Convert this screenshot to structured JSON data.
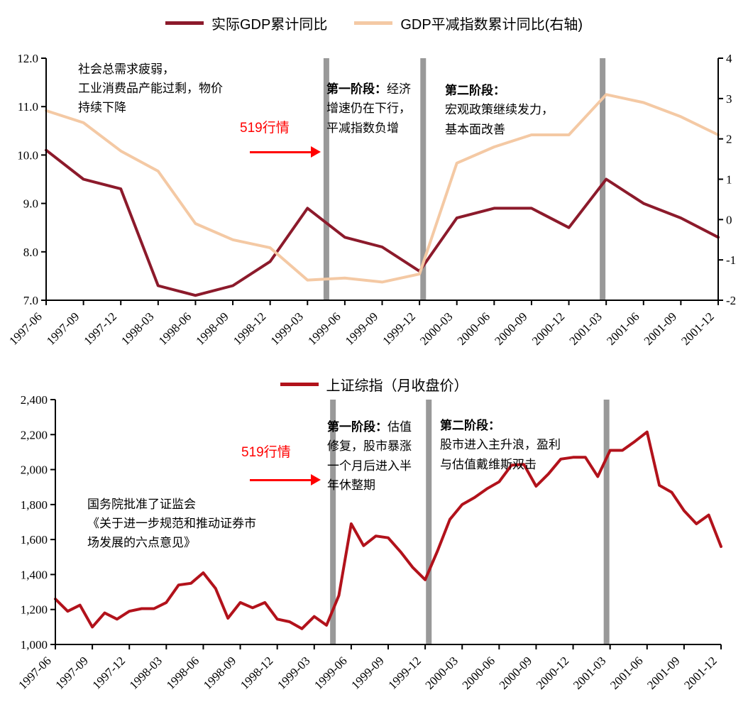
{
  "colors": {
    "background": "#ffffff",
    "text": "#000000",
    "axis": "#000000",
    "event_bar": "#999999",
    "highlight_red": "#ff0000"
  },
  "chart_data": [
    {
      "type": "line",
      "title": "",
      "legend_position": "top",
      "grid": false,
      "categories": [
        "1997-06",
        "1997-09",
        "1997-12",
        "1998-03",
        "1998-06",
        "1998-09",
        "1998-12",
        "1999-03",
        "1999-06",
        "1999-09",
        "1999-12",
        "2000-03",
        "2000-06",
        "2000-09",
        "2000-12",
        "2001-03",
        "2001-06",
        "2001-09",
        "2001-12"
      ],
      "series": [
        {
          "name": "实际GDP累计同比",
          "slug": "real-gdp-line",
          "axis": "left",
          "color": "#8C1A2B",
          "values": [
            10.1,
            9.5,
            9.3,
            7.3,
            7.1,
            7.3,
            7.8,
            8.9,
            8.3,
            8.1,
            7.6,
            8.7,
            8.9,
            8.9,
            8.5,
            9.5,
            9.0,
            8.7,
            8.3
          ]
        },
        {
          "name": "GDP平减指数累计同比(右轴)",
          "slug": "gdp-deflator-line",
          "axis": "right",
          "color": "#F4C9A4",
          "values": [
            2.7,
            2.4,
            1.7,
            1.2,
            -0.1,
            -0.5,
            -0.7,
            -1.5,
            -1.45,
            -1.55,
            -1.35,
            1.4,
            1.8,
            2.1,
            2.1,
            3.1,
            2.9,
            2.55,
            2.1
          ]
        }
      ],
      "y_left": {
        "min": 7.0,
        "max": 12.0,
        "ticks": [
          "12.0",
          "11.0",
          "10.0",
          "9.0",
          "8.0",
          "7.0"
        ]
      },
      "y_right": {
        "min": -2,
        "max": 4,
        "ticks": [
          "4",
          "3",
          "2",
          "1",
          "0",
          "-1",
          "-2"
        ]
      },
      "event_bars": [
        {
          "frac": 0.417
        },
        {
          "frac": 0.561
        },
        {
          "frac": 0.828
        }
      ],
      "annotations": {
        "note": "社会总需求疲弱，\n工业消费品产能过剩，物价\n持续下降",
        "event": "519行情",
        "phase1_label": "第一阶段：",
        "phase1_text": "经济\n增速仍在下行，\n平减指数负增",
        "phase2_label": "第二阶段：",
        "phase2_text": "宏观政策继续发力，\n基本面改善"
      }
    },
    {
      "type": "line",
      "title": "",
      "legend_position": "top",
      "grid": false,
      "x_frequency": "monthly",
      "categories": [
        "1997-06",
        "1997-09",
        "1997-12",
        "1998-03",
        "1998-06",
        "1998-09",
        "1998-12",
        "1999-03",
        "1999-06",
        "1999-09",
        "1999-12",
        "2000-03",
        "2000-06",
        "2000-09",
        "2000-12",
        "2001-03",
        "2001-06",
        "2001-09",
        "2001-12"
      ],
      "series": [
        {
          "name": "上证综指（月收盘价）",
          "slug": "sse-composite-line",
          "axis": "left",
          "color": "#B2121B",
          "values": [
            1260,
            1190,
            1225,
            1100,
            1180,
            1145,
            1190,
            1205,
            1205,
            1240,
            1340,
            1350,
            1410,
            1320,
            1150,
            1240,
            1210,
            1240,
            1145,
            1130,
            1090,
            1160,
            1110,
            1280,
            1690,
            1565,
            1620,
            1610,
            1530,
            1440,
            1370,
            1535,
            1715,
            1800,
            1840,
            1890,
            1930,
            2025,
            2030,
            1905,
            1975,
            2060,
            2070,
            2070,
            1960,
            2110,
            2110,
            2160,
            2215,
            1910,
            1870,
            1765,
            1690,
            1740,
            1560
          ]
        }
      ],
      "y_left": {
        "min": 1000,
        "max": 2400,
        "ticks": [
          "2,400",
          "2,200",
          "2,000",
          "1,800",
          "1,600",
          "1,400",
          "1,200",
          "1,000"
        ]
      },
      "event_bars": [
        {
          "frac": 0.417
        },
        {
          "frac": 0.561
        },
        {
          "frac": 0.828
        }
      ],
      "annotations": {
        "note": "国务院批准了证监会\n《关于进一步规范和推动证券市\n场发展的六点意见》",
        "event": "519行情",
        "phase1_label": "第一阶段：",
        "phase1_text": "估值\n修复，股市暴涨\n一个月后进入半\n年休整期",
        "phase2_label": "第二阶段：",
        "phase2_text": "股市进入主升浪，盈利\n与估值戴维斯双击"
      }
    }
  ]
}
